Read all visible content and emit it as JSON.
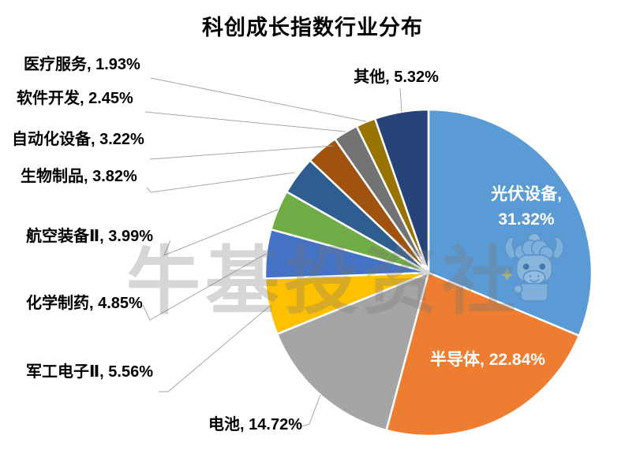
{
  "header": {
    "title": "科创成长指数行业分布"
  },
  "watermark": {
    "text": "牛基投资社",
    "mascot_icon": "bull-mascot-icon"
  },
  "chart_data": {
    "type": "pie",
    "title": "科创成长指数行业分布",
    "unit": "%",
    "start_angle_deg": 0,
    "direction": "clockwise",
    "legend": "none",
    "categories": [
      "光伏设备",
      "半导体",
      "电池",
      "军工电子Ⅱ",
      "化学制药",
      "航空装备Ⅱ",
      "生物制品",
      "自动化设备",
      "软件开发",
      "医疗服务",
      "其他"
    ],
    "values": [
      31.32,
      22.84,
      14.72,
      5.56,
      4.85,
      3.99,
      3.82,
      3.22,
      2.45,
      1.93,
      5.32
    ],
    "colors": [
      "#5B9BD5",
      "#ED7D31",
      "#A5A5A5",
      "#FFC000",
      "#4472C4",
      "#70AD47",
      "#2E5E90",
      "#A0520F",
      "#737373",
      "#997300",
      "#264478"
    ],
    "display_labels": [
      [
        "光伏设备,",
        "31.32%"
      ],
      [
        "半导体, 22.84%"
      ],
      [
        "电池, 14.72%"
      ],
      [
        "军工电子Ⅱ, 5.56%"
      ],
      [
        "化学制药, 4.85%"
      ],
      [
        "航空装备Ⅱ, 3.99%"
      ],
      [
        "生物制品, 3.82%"
      ],
      [
        "自动化设备, 3.22%"
      ],
      [
        "软件开发, 2.45%"
      ],
      [
        "医疗服务, 1.93%"
      ],
      [
        "其他, 5.32%"
      ]
    ],
    "label_style": "first two labels inside in white, others as black callout labels with gray leader lines",
    "leader_line_color": "#A6A6A6",
    "slice_border_color": "#FFFFFF"
  }
}
